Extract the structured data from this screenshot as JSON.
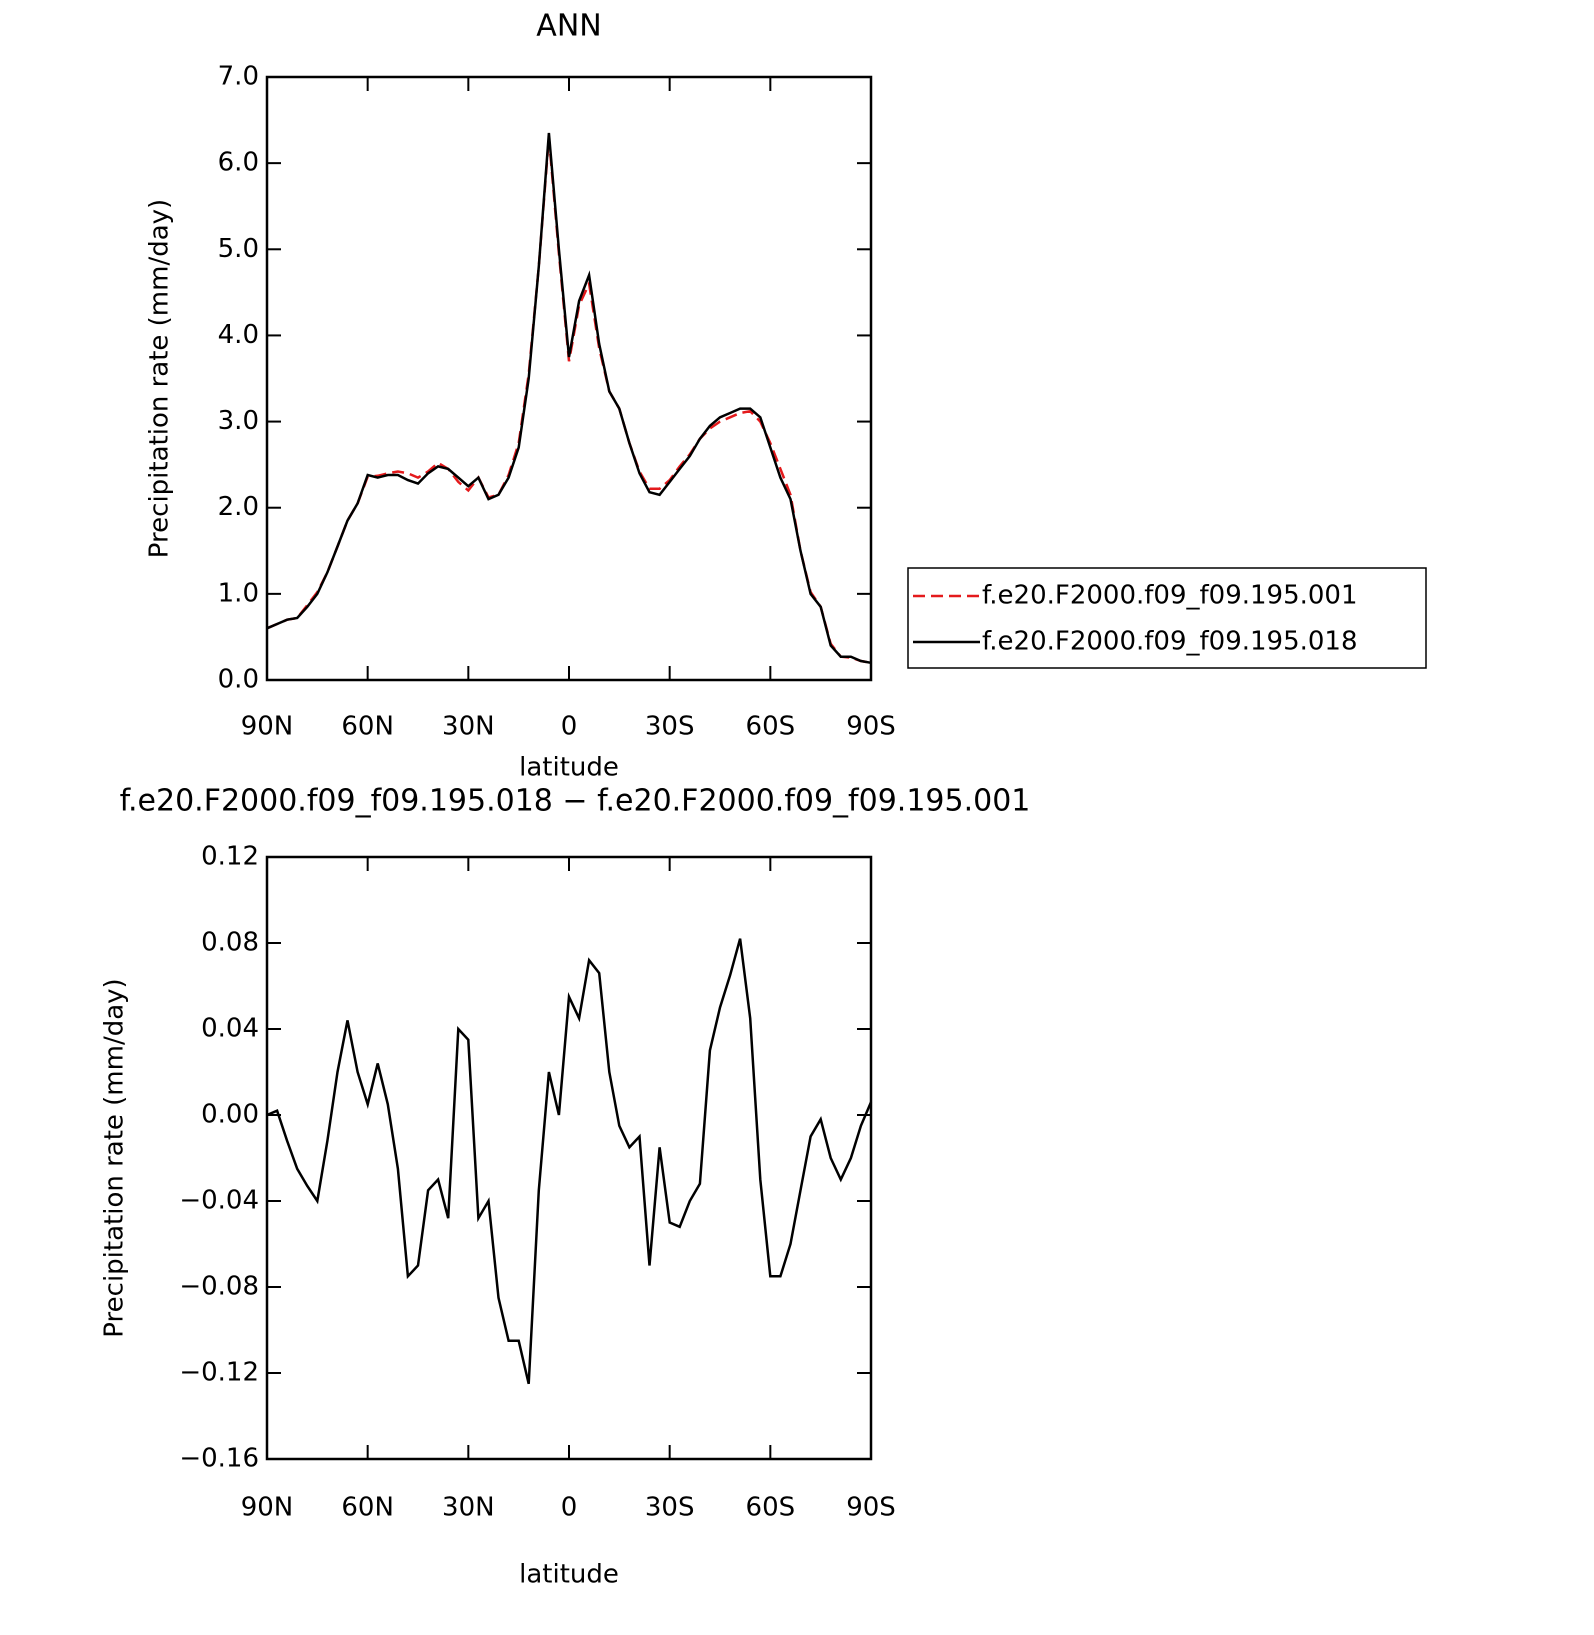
{
  "chart_data": [
    {
      "type": "line",
      "title": "ANN",
      "x_label": "latitude",
      "y_label": "Precipitation rate (mm/day)",
      "x": [
        90,
        87,
        84,
        81,
        78,
        75,
        72,
        69,
        66,
        63,
        60,
        57,
        54,
        51,
        48,
        45,
        42,
        39,
        36,
        33,
        30,
        27,
        24,
        21,
        18,
        15,
        12,
        9,
        6,
        3,
        0,
        -3,
        -6,
        -9,
        -12,
        -15,
        -18,
        -21,
        -24,
        -27,
        -30,
        -33,
        -36,
        -39,
        -42,
        -45,
        -48,
        -51,
        -54,
        -57,
        -60,
        -63,
        -66,
        -69,
        -72,
        -75,
        -78,
        -81,
        -84,
        -87,
        -90
      ],
      "xlim": [
        90,
        -90
      ],
      "xticks": [
        {
          "value": 90,
          "label": "90N"
        },
        {
          "value": 60,
          "label": "60N"
        },
        {
          "value": 30,
          "label": "30N"
        },
        0,
        {
          "value": -30,
          "label": "30S"
        },
        {
          "value": -60,
          "label": "60S"
        },
        {
          "value": -90,
          "label": "90S"
        }
      ],
      "ylim": [
        0,
        7
      ],
      "yticks": [
        {
          "value": 0,
          "label": "0.0"
        },
        {
          "value": 1,
          "label": "1.0"
        },
        {
          "value": 2,
          "label": "2.0"
        },
        {
          "value": 3,
          "label": "3.0"
        },
        {
          "value": 4,
          "label": "4.0"
        },
        {
          "value": 5,
          "label": "5.0"
        },
        {
          "value": 6,
          "label": "6.0"
        },
        {
          "value": 7,
          "label": "7.0"
        }
      ],
      "legend": "right",
      "series": [
        {
          "name": "f.e20.F2000.f09_f09.195.001",
          "color": "#e41a1c",
          "line_style": "dashed",
          "values": [
            0.6,
            0.65,
            0.7,
            0.72,
            0.87,
            1.02,
            1.25,
            1.55,
            1.85,
            2.05,
            2.36,
            2.37,
            2.4,
            2.42,
            2.4,
            2.35,
            2.42,
            2.52,
            2.45,
            2.3,
            2.2,
            2.35,
            2.12,
            2.15,
            2.38,
            2.75,
            3.55,
            4.8,
            6.3,
            4.95,
            3.7,
            4.35,
            4.6,
            3.85,
            3.35,
            3.15,
            2.75,
            2.42,
            2.22,
            2.22,
            2.32,
            2.48,
            2.62,
            2.8,
            2.92,
            3.0,
            3.05,
            3.1,
            3.12,
            3.0,
            2.75,
            2.45,
            2.15,
            1.5,
            1.02,
            0.85,
            0.42,
            0.27,
            0.26,
            0.22,
            0.2
          ]
        },
        {
          "name": "f.e20.F2000.f09_f09.195.018",
          "color": "#000000",
          "line_style": "solid",
          "values": [
            0.6,
            0.65,
            0.7,
            0.72,
            0.85,
            1.0,
            1.25,
            1.55,
            1.85,
            2.05,
            2.38,
            2.35,
            2.38,
            2.38,
            2.32,
            2.28,
            2.4,
            2.48,
            2.45,
            2.35,
            2.25,
            2.35,
            2.1,
            2.15,
            2.35,
            2.7,
            3.5,
            4.8,
            6.35,
            5.0,
            3.75,
            4.4,
            4.7,
            3.9,
            3.35,
            3.15,
            2.75,
            2.4,
            2.18,
            2.15,
            2.3,
            2.45,
            2.6,
            2.8,
            2.95,
            3.05,
            3.1,
            3.15,
            3.15,
            3.05,
            2.7,
            2.35,
            2.1,
            1.5,
            1.0,
            0.85,
            0.4,
            0.27,
            0.27,
            0.22,
            0.2
          ]
        }
      ]
    },
    {
      "type": "line",
      "title": "f.e20.F2000.f09_f09.195.018 − f.e20.F2000.f09_f09.195.001",
      "x_label": "latitude",
      "y_label": "Precipitation rate (mm/day)",
      "x": [
        90,
        87,
        84,
        81,
        78,
        75,
        72,
        69,
        66,
        63,
        60,
        57,
        54,
        51,
        48,
        45,
        42,
        39,
        36,
        33,
        30,
        27,
        24,
        21,
        18,
        15,
        12,
        9,
        6,
        3,
        0,
        -3,
        -6,
        -9,
        -12,
        -15,
        -18,
        -21,
        -24,
        -27,
        -30,
        -33,
        -36,
        -39,
        -42,
        -45,
        -48,
        -51,
        -54,
        -57,
        -60,
        -63,
        -66,
        -69,
        -72,
        -75,
        -78,
        -81,
        -84,
        -87,
        -90
      ],
      "xlim": [
        90,
        -90
      ],
      "xticks": [
        {
          "value": 90,
          "label": "90N"
        },
        {
          "value": 60,
          "label": "60N"
        },
        {
          "value": 30,
          "label": "30N"
        },
        0,
        {
          "value": -30,
          "label": "30S"
        },
        {
          "value": -60,
          "label": "60S"
        },
        {
          "value": -90,
          "label": "90S"
        }
      ],
      "ylim": [
        -0.16,
        0.12
      ],
      "yticks": [
        {
          "value": -0.16,
          "label": "−0.16"
        },
        {
          "value": -0.12,
          "label": "−0.12"
        },
        {
          "value": -0.08,
          "label": "−0.08"
        },
        {
          "value": -0.04,
          "label": "−0.04"
        },
        {
          "value": 0,
          "label": "0.00"
        },
        0.04,
        0.08,
        0.12
      ],
      "series": [
        {
          "color": "#000000",
          "line_style": "solid",
          "values": [
            0.0,
            0.002,
            -0.012,
            -0.025,
            -0.033,
            -0.04,
            -0.012,
            0.02,
            0.044,
            0.02,
            0.005,
            0.024,
            0.005,
            -0.025,
            -0.075,
            -0.07,
            -0.035,
            -0.03,
            -0.048,
            0.04,
            0.035,
            -0.048,
            -0.04,
            -0.085,
            -0.105,
            -0.105,
            -0.125,
            -0.035,
            0.02,
            0.0,
            0.055,
            0.045,
            0.072,
            0.066,
            0.02,
            -0.005,
            -0.015,
            -0.01,
            -0.07,
            -0.015,
            -0.05,
            -0.052,
            -0.04,
            -0.032,
            0.03,
            0.05,
            0.065,
            0.082,
            0.045,
            -0.03,
            -0.075,
            -0.075,
            -0.06,
            -0.035,
            -0.01,
            -0.002,
            -0.02,
            -0.03,
            -0.02,
            -0.005,
            0.006
          ]
        }
      ]
    }
  ]
}
